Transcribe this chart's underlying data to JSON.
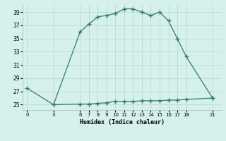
{
  "x_upper": [
    0,
    3,
    6,
    7,
    8,
    9,
    10,
    11,
    12,
    13,
    14,
    15,
    16,
    17,
    18,
    21
  ],
  "y_upper": [
    27.5,
    25.0,
    36.0,
    37.2,
    38.3,
    38.5,
    38.8,
    39.5,
    39.5,
    39.0,
    38.5,
    39.0,
    37.7,
    35.0,
    32.3,
    26.0
  ],
  "x_lower": [
    3,
    6,
    7,
    8,
    9,
    10,
    11,
    12,
    13,
    14,
    15,
    16,
    17,
    18,
    21
  ],
  "y_lower": [
    25.0,
    25.1,
    25.1,
    25.2,
    25.3,
    25.5,
    25.5,
    25.5,
    25.6,
    25.6,
    25.6,
    25.7,
    25.7,
    25.8,
    26.0
  ],
  "line_color": "#2e7d6e",
  "bg_color": "#d6f0ec",
  "grid_color": "#c0ddd8",
  "xlabel": "Humidex (Indice chaleur)",
  "xticks": [
    0,
    3,
    6,
    7,
    8,
    9,
    10,
    11,
    12,
    13,
    14,
    15,
    16,
    17,
    18,
    21
  ],
  "yticks": [
    25,
    27,
    29,
    31,
    33,
    35,
    37,
    39
  ],
  "ylim": [
    24.2,
    40.2
  ],
  "xlim": [
    -0.5,
    22.0
  ]
}
